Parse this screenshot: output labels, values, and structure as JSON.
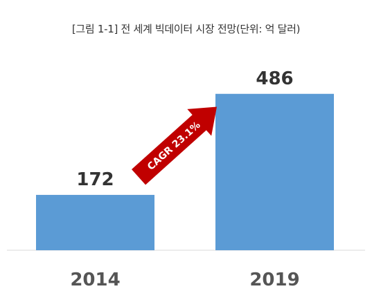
{
  "chart_data": {
    "type": "bar",
    "title": "[그림 1-1] 전 세계 빅데이터 시장 전망(단위: 억 달러)",
    "categories": [
      "2014",
      "2019"
    ],
    "values": [
      172,
      486
    ],
    "xlabel": "",
    "ylabel": "",
    "ylim": [
      0,
      580
    ],
    "grid": false,
    "annotation": "CAGR 23.1%",
    "colors": {
      "bar": "#5b9bd5",
      "arrow": "#c00000",
      "baseline": "#d9d9d9"
    }
  }
}
